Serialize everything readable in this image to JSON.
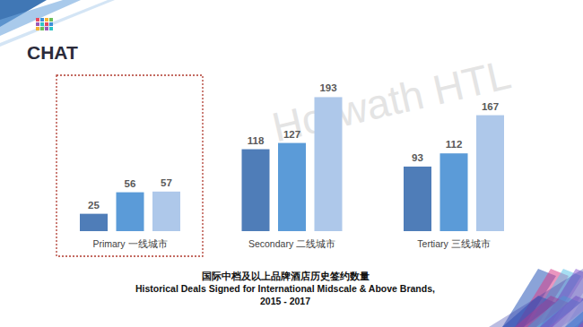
{
  "page": {
    "logo": "CHAT",
    "watermark": "Horwath HTL"
  },
  "chart_data": {
    "type": "bar",
    "title": "国际中档及以上品牌酒店历史签约数量",
    "subtitle": [
      "Historical Deals Signed for International Midscale & Above Brands,",
      "2015 - 2017"
    ],
    "categories": [
      "Primary  一线城市",
      "Secondary  二线城市",
      "Tertiary  三线城市"
    ],
    "series": [
      {
        "color": "#4f7db8",
        "values": [
          25,
          118,
          93
        ]
      },
      {
        "color": "#5b9bd8",
        "values": [
          56,
          127,
          112
        ]
      },
      {
        "color": "#aec8ea",
        "values": [
          57,
          193,
          167
        ]
      }
    ],
    "ylim": [
      0,
      200
    ],
    "grid": false,
    "data_labels": true,
    "tick_labels": "x"
  }
}
